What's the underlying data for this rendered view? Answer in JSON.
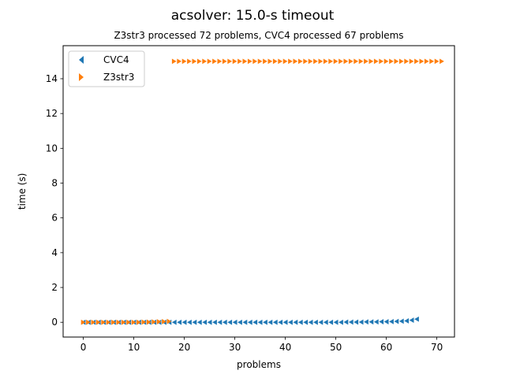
{
  "chart_data": {
    "type": "scatter",
    "title": "acsolver: 15.0-s timeout",
    "subtitle": "Z3str3 processed 72 problems, CVC4 processed 67 problems",
    "xlabel": "problems",
    "ylabel": "time (s)",
    "xlim": [
      -4.0,
      73.5
    ],
    "ylim": [
      -0.85,
      15.9
    ],
    "xticks": [
      0,
      10,
      20,
      30,
      40,
      50,
      60,
      70
    ],
    "yticks": [
      0,
      2,
      4,
      6,
      8,
      10,
      12,
      14
    ],
    "grid": false,
    "legend_position": "upper left",
    "series": [
      {
        "name": "CVC4",
        "marker": "triangle-left",
        "color": "#1f77b4",
        "x": [
          0,
          1,
          2,
          3,
          4,
          5,
          6,
          7,
          8,
          9,
          10,
          11,
          12,
          13,
          14,
          15,
          16,
          17,
          18,
          19,
          20,
          21,
          22,
          23,
          24,
          25,
          26,
          27,
          28,
          29,
          30,
          31,
          32,
          33,
          34,
          35,
          36,
          37,
          38,
          39,
          40,
          41,
          42,
          43,
          44,
          45,
          46,
          47,
          48,
          49,
          50,
          51,
          52,
          53,
          54,
          55,
          56,
          57,
          58,
          59,
          60,
          61,
          62,
          63,
          64,
          65,
          66
        ],
        "y": [
          0,
          0,
          0,
          0,
          0,
          0,
          0,
          0,
          0,
          0,
          0,
          0,
          0,
          0,
          0,
          0,
          0,
          0,
          0,
          0,
          0,
          0,
          0,
          0,
          0,
          0,
          0,
          0,
          0,
          0,
          0,
          0,
          0,
          0,
          0,
          0,
          0,
          0,
          0,
          0,
          0,
          0,
          0,
          0,
          0,
          0,
          0,
          0,
          0,
          0,
          0,
          0,
          0.01,
          0.01,
          0.01,
          0.01,
          0.02,
          0.02,
          0.02,
          0.03,
          0.03,
          0.04,
          0.05,
          0.06,
          0.08,
          0.12,
          0.18
        ]
      },
      {
        "name": "Z3str3",
        "marker": "triangle-right",
        "color": "#ff7f0e",
        "x": [
          0,
          1,
          2,
          3,
          4,
          5,
          6,
          7,
          8,
          9,
          10,
          11,
          12,
          13,
          14,
          15,
          16,
          17,
          18,
          19,
          20,
          21,
          22,
          23,
          24,
          25,
          26,
          27,
          28,
          29,
          30,
          31,
          32,
          33,
          34,
          35,
          36,
          37,
          38,
          39,
          40,
          41,
          42,
          43,
          44,
          45,
          46,
          47,
          48,
          49,
          50,
          51,
          52,
          53,
          54,
          55,
          56,
          57,
          58,
          59,
          60,
          61,
          62,
          63,
          64,
          65,
          66,
          67,
          68,
          69,
          70,
          71
        ],
        "y": [
          0,
          0,
          0,
          0,
          0,
          0,
          0,
          0,
          0,
          0,
          0,
          0,
          0.01,
          0.01,
          0.02,
          0.03,
          0.04,
          0.05,
          15,
          15,
          15,
          15,
          15,
          15,
          15,
          15,
          15,
          15,
          15,
          15,
          15,
          15,
          15,
          15,
          15,
          15,
          15,
          15,
          15,
          15,
          15,
          15,
          15,
          15,
          15,
          15,
          15,
          15,
          15,
          15,
          15,
          15,
          15,
          15,
          15,
          15,
          15,
          15,
          15,
          15,
          15,
          15,
          15,
          15,
          15,
          15,
          15,
          15,
          15,
          15,
          15,
          15
        ]
      }
    ]
  }
}
